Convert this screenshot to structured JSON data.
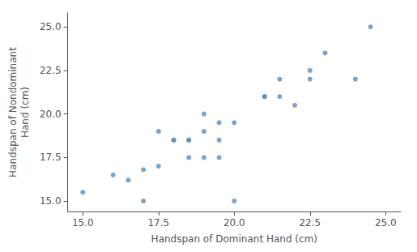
{
  "chart_data": {
    "type": "scatter",
    "x": [
      15.0,
      16.0,
      16.5,
      17.0,
      17.0,
      17.5,
      17.5,
      18.0,
      18.0,
      18.5,
      18.5,
      18.5,
      19.0,
      19.0,
      19.0,
      19.5,
      19.5,
      19.5,
      20.0,
      20.0,
      21.0,
      21.0,
      21.5,
      21.5,
      22.0,
      22.5,
      22.5,
      23.0,
      24.0,
      24.5
    ],
    "values": [
      15.5,
      16.5,
      16.2,
      16.8,
      15.0,
      17.0,
      19.0,
      18.5,
      18.5,
      17.5,
      18.5,
      18.5,
      17.5,
      19.0,
      20.0,
      18.5,
      19.5,
      17.5,
      19.5,
      15.0,
      21.0,
      21.0,
      22.0,
      21.0,
      20.5,
      22.0,
      22.5,
      23.5,
      22.0,
      25.0
    ],
    "xlabel": "Handspan of Dominant Hand (cm)",
    "ylabel": "Handspan of Nondominant\nHand (cm)",
    "xlim": [
      14.5,
      25.5
    ],
    "ylim": [
      14.4,
      25.8
    ],
    "xticks": [
      {
        "value": 15,
        "label": "15.0"
      },
      17.5,
      {
        "value": 20,
        "label": "20.0"
      },
      22.5,
      {
        "value": 25,
        "label": "25.0"
      }
    ],
    "yticks": [
      {
        "value": 15,
        "label": "15.0"
      },
      17.5,
      {
        "value": 20,
        "label": "20.0"
      },
      22.5,
      {
        "value": 25,
        "label": "25.0"
      }
    ],
    "color": "#5b8db8",
    "grid": false
  }
}
